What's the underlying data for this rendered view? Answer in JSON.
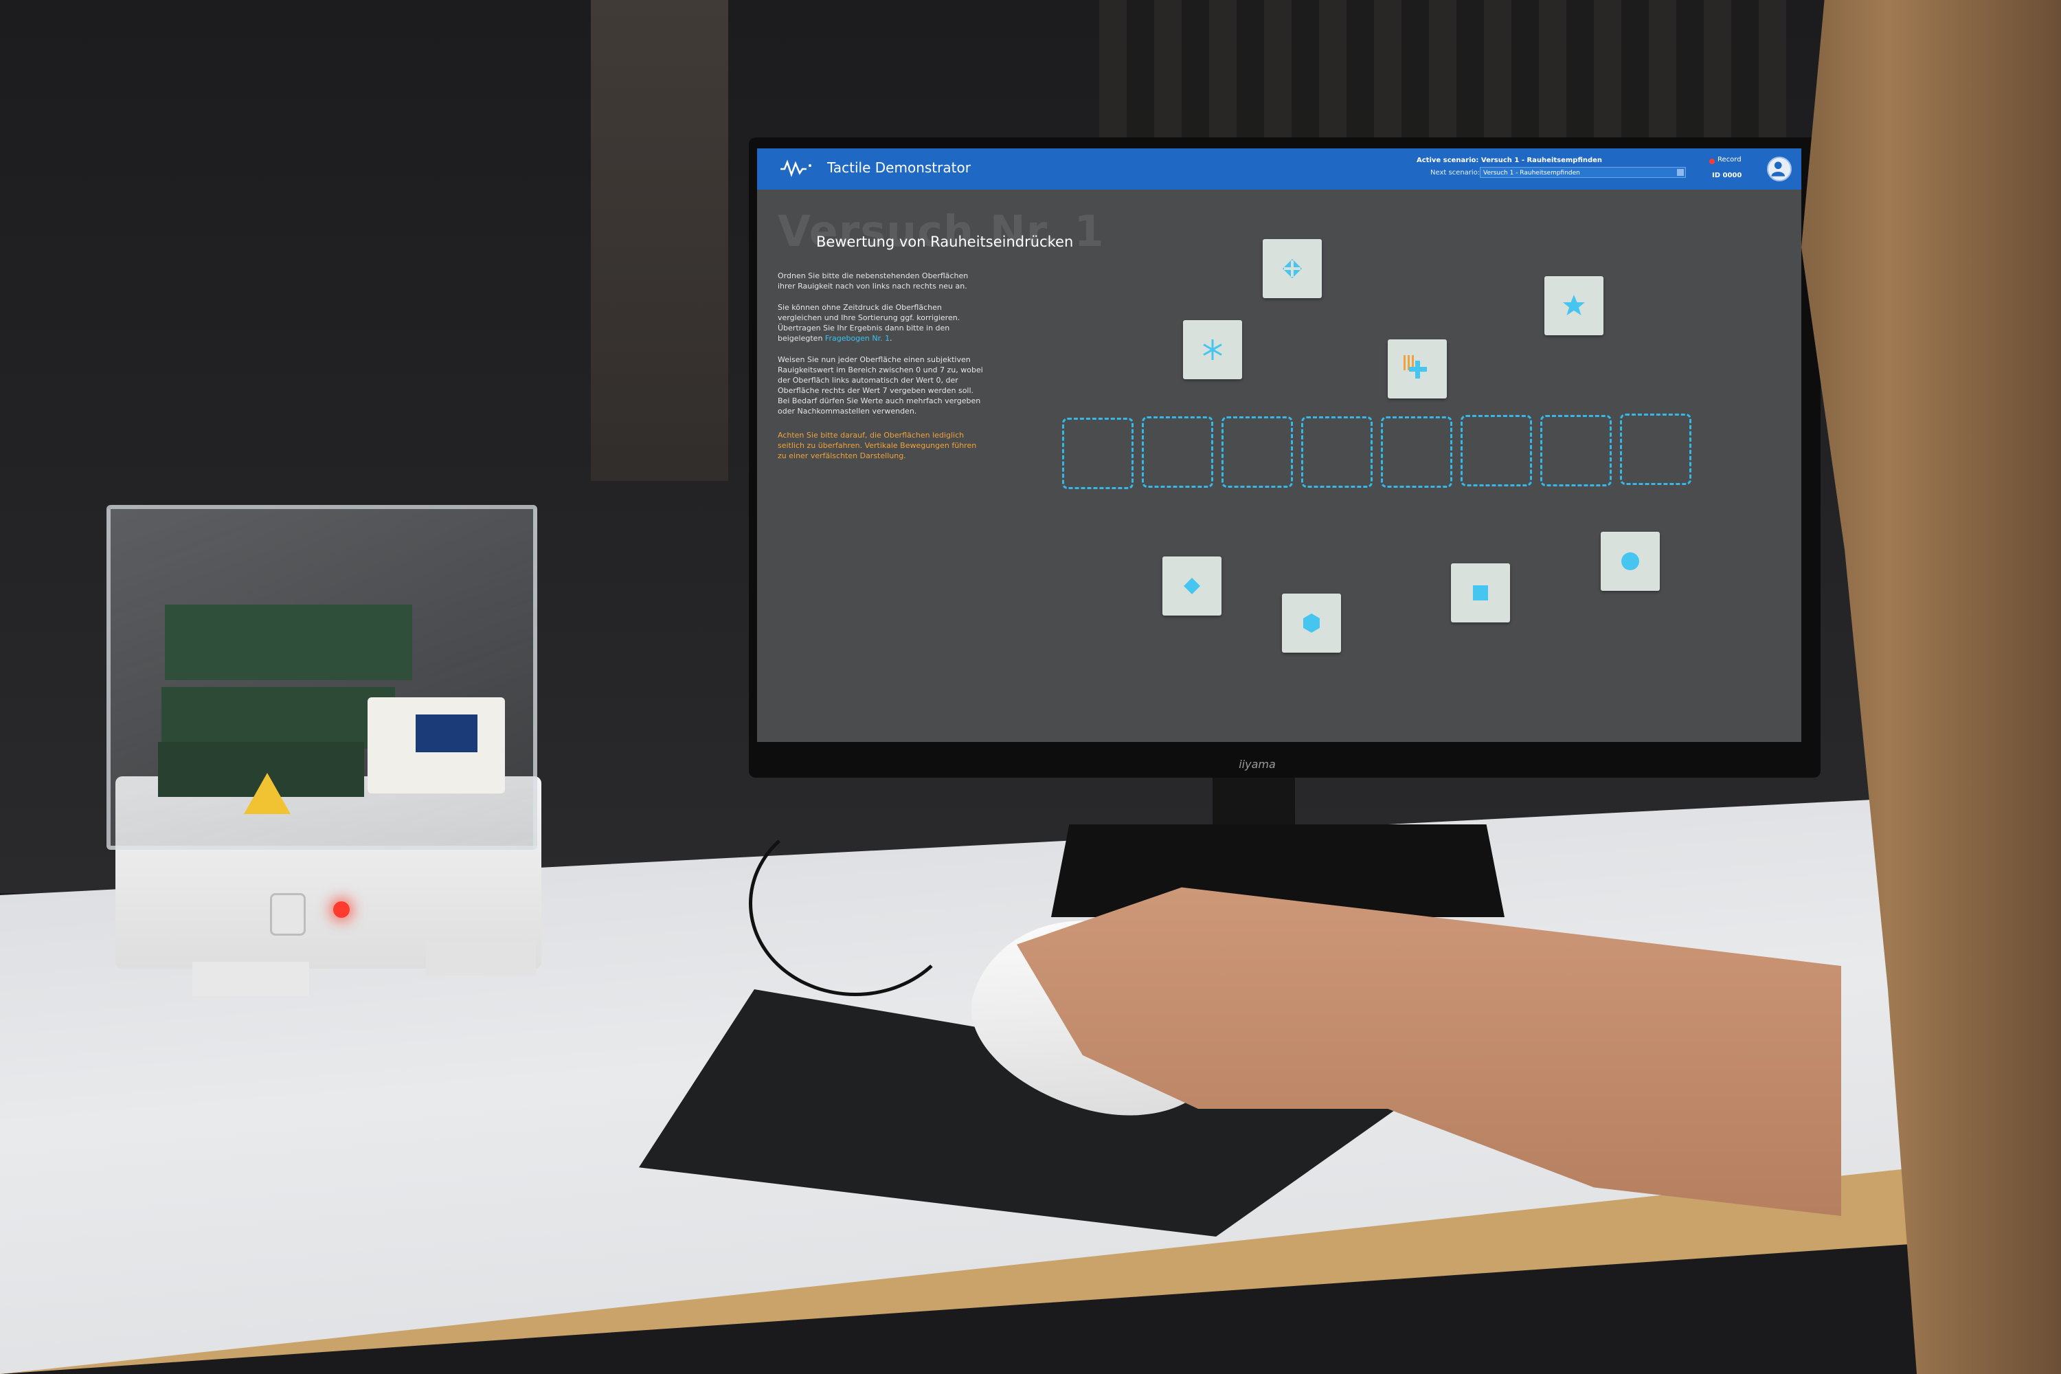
{
  "app": {
    "title": "Tactile Demonstrator",
    "active_scenario_label": "Active scenario: Versuch 1 - Rauheitsempfinden",
    "next_scenario_label": "Next scenario:",
    "next_scenario_value": "Versuch 1 - Rauheitsempfinden",
    "record_label": "Record",
    "id_label": "ID 0000"
  },
  "content": {
    "big_title": "Versuch Nr. 1",
    "subtitle": "Bewertung von Rauheitseindrücken",
    "para1": "Ordnen Sie bitte die nebenstehenden Oberflächen ihrer Rauigkeit nach von links nach rechts neu an.",
    "para2_a": "Sie können ohne Zeitdruck die Oberflächen vergleichen und Ihre Sortierung ggf. korrigieren. Übertragen Sie Ihr Ergebnis dann bitte in den beigelegten",
    "para2_link": "Fragebogen Nr. 1",
    "para2_b": ".",
    "para3": "Weisen Sie nun jeder Oberfläche einen subjektiven Rauigkeitswert im Bereich zwischen 0 und 7 zu, wobei der Oberfläch links automatisch der Wert 0, der Oberfläche rechts der Wert 7 vergeben werden soll. Bei Bedarf dürfen Sie Werte auch mehrfach vergeben oder Nachkommastellen verwenden.",
    "para4": "Achten Sie bitte darauf, die Oberflächen lediglich seitlich zu überfahren. Vertikale Bewegungen führen zu einer verfälschten Darstellung."
  },
  "monitor": {
    "brand": "iiyama"
  },
  "colors": {
    "header": "#1f69c5",
    "accent": "#36b7e6",
    "warning": "#f0a33a",
    "tile": "#d9e1dd"
  },
  "tiles": [
    {
      "name": "tile-diamond-cross",
      "icon": "diamond-cross-icon"
    },
    {
      "name": "tile-star",
      "icon": "star-icon"
    },
    {
      "name": "tile-snowflake",
      "icon": "snowflake-icon"
    },
    {
      "name": "tile-plus",
      "icon": "plus-icon"
    },
    {
      "name": "tile-diamond",
      "icon": "diamond-icon"
    },
    {
      "name": "tile-hexagon",
      "icon": "hexagon-icon"
    },
    {
      "name": "tile-square",
      "icon": "square-icon"
    },
    {
      "name": "tile-circle",
      "icon": "circle-icon"
    }
  ],
  "slots": [
    "slot-1",
    "slot-2",
    "slot-3",
    "slot-4",
    "slot-5",
    "slot-6",
    "slot-7",
    "slot-8"
  ]
}
